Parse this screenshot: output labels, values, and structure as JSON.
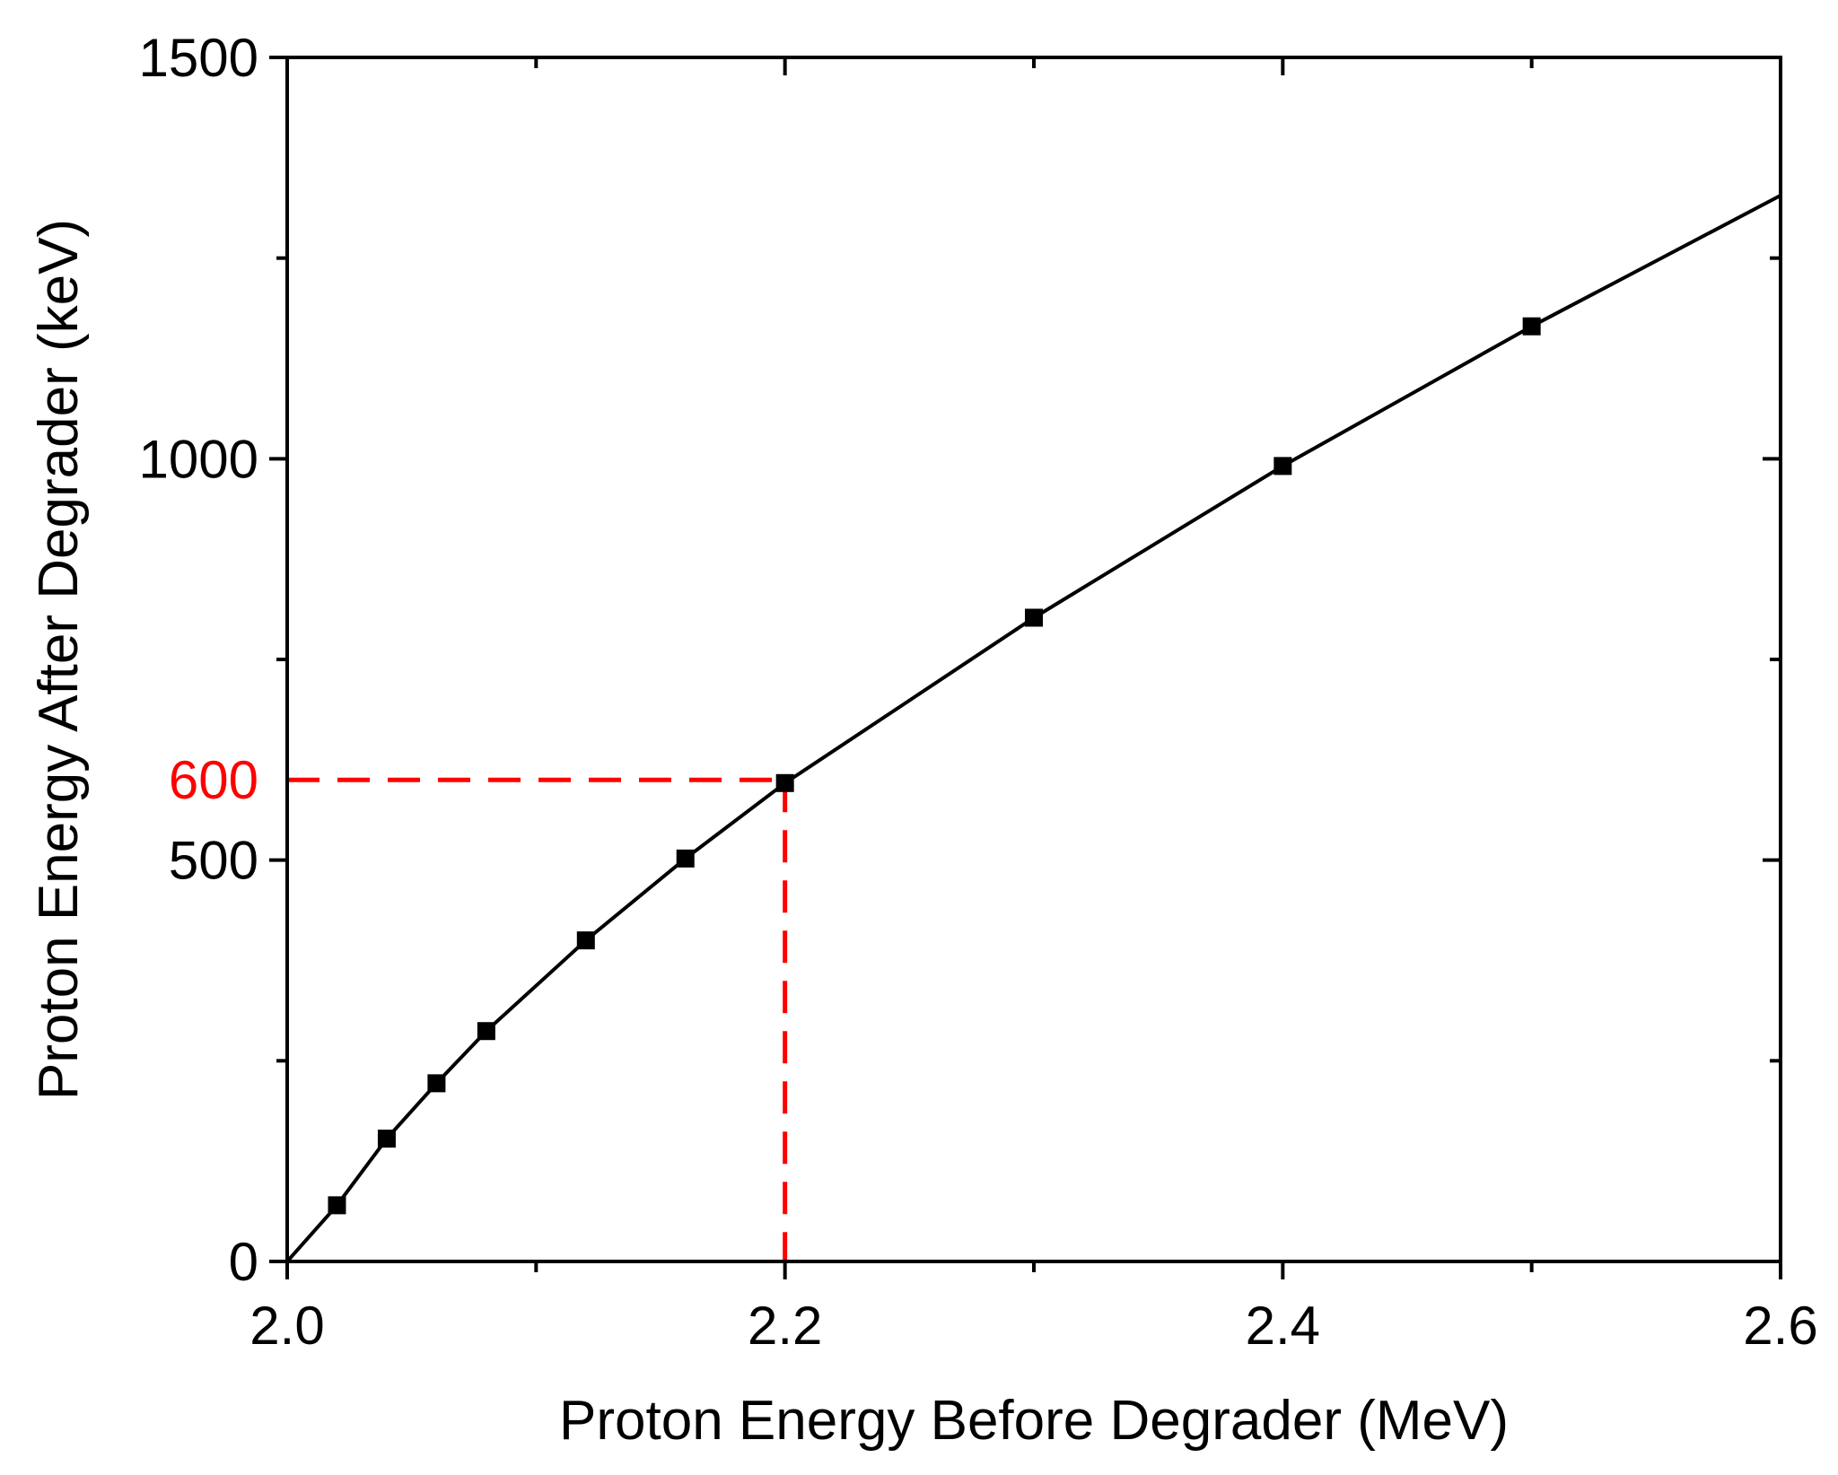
{
  "chart_data": {
    "type": "line",
    "xlabel": "Proton Energy Before Degrader (MeV)",
    "ylabel": "Proton Energy After Degrader (keV)",
    "xlim": [
      2.0,
      2.6
    ],
    "ylim": [
      0,
      1500
    ],
    "x_ticks": [
      {
        "value": 2.0,
        "label": "2.0"
      },
      {
        "value": 2.2,
        "label": "2.2"
      },
      {
        "value": 2.4,
        "label": "2.4"
      },
      {
        "value": 2.6,
        "label": "2.6"
      }
    ],
    "x_minor_ticks": [
      2.1,
      2.3,
      2.5
    ],
    "y_ticks": [
      {
        "value": 0,
        "label": "0"
      },
      {
        "value": 500,
        "label": "500"
      },
      {
        "value": 1000,
        "label": "1000"
      },
      {
        "value": 1500,
        "label": "1500"
      }
    ],
    "y_minor_ticks": [
      250,
      750,
      1250
    ],
    "grid": false,
    "legend": "none",
    "line": {
      "color": "#000000",
      "x": [
        2.0,
        2.02,
        2.04,
        2.06,
        2.08,
        2.12,
        2.16,
        2.2,
        2.3,
        2.4,
        2.5,
        2.6
      ],
      "y": [
        0,
        70,
        153,
        222,
        287,
        400,
        502,
        596,
        802,
        991,
        1165,
        1328
      ]
    },
    "markers": {
      "color": "#000000",
      "shape": "square",
      "x": [
        2.02,
        2.04,
        2.06,
        2.08,
        2.12,
        2.16,
        2.2,
        2.3,
        2.4,
        2.5
      ],
      "y": [
        70,
        153,
        222,
        287,
        400,
        502,
        596,
        802,
        991,
        1165
      ]
    },
    "highlight": {
      "color": "#ff0000",
      "x": 2.2,
      "y": 600,
      "label": "600",
      "style": "dashed"
    }
  }
}
